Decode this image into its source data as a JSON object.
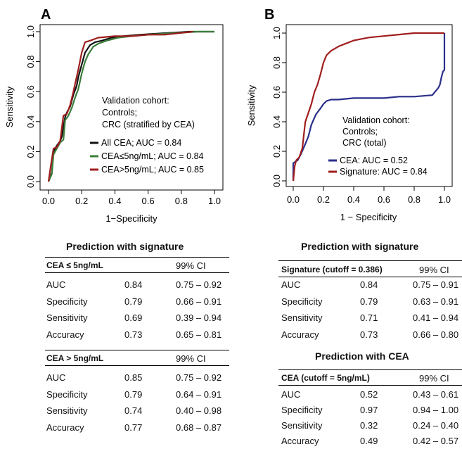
{
  "chart_data": [
    {
      "type": "line",
      "panel": "A",
      "xlabel": "1−Specificity",
      "ylabel": "Sensitivity",
      "xlim": [
        0,
        1
      ],
      "ylim": [
        0,
        1
      ],
      "x_ticks": [
        "0.0",
        "0.2",
        "0.4",
        "0.6",
        "0.8",
        "1.0"
      ],
      "y_ticks": [
        "0.0",
        "0.2",
        "0.4",
        "0.6",
        "0.8",
        "1.0"
      ],
      "annotation": [
        "Validation cohort:",
        "Controls;",
        "CRC (stratified by CEA)"
      ],
      "legend_position": "bottom-right",
      "series": [
        {
          "name": "All CEA; AUC = 0.84",
          "color": "#111111",
          "x": [
            0.0,
            0.02,
            0.03,
            0.05,
            0.07,
            0.08,
            0.1,
            0.11,
            0.13,
            0.15,
            0.17,
            0.18,
            0.2,
            0.22,
            0.25,
            0.28,
            0.32,
            0.38,
            0.45,
            0.55,
            0.7,
            0.85,
            1.0
          ],
          "y": [
            0.0,
            0.06,
            0.2,
            0.24,
            0.27,
            0.3,
            0.43,
            0.46,
            0.5,
            0.58,
            0.64,
            0.7,
            0.78,
            0.86,
            0.91,
            0.93,
            0.94,
            0.96,
            0.97,
            0.98,
            0.99,
            1.0,
            1.0
          ]
        },
        {
          "name": "CEA≤5ng/mL; AUC = 0.84",
          "color": "#3a7d3a",
          "x": [
            0.0,
            0.02,
            0.03,
            0.05,
            0.07,
            0.09,
            0.1,
            0.12,
            0.14,
            0.16,
            0.18,
            0.2,
            0.22,
            0.24,
            0.27,
            0.3,
            0.35,
            0.42,
            0.5,
            0.6,
            0.75,
            0.9,
            1.0
          ],
          "y": [
            0.0,
            0.05,
            0.18,
            0.22,
            0.26,
            0.28,
            0.41,
            0.44,
            0.49,
            0.56,
            0.62,
            0.72,
            0.8,
            0.85,
            0.9,
            0.92,
            0.94,
            0.96,
            0.97,
            0.98,
            0.99,
            1.0,
            1.0
          ]
        },
        {
          "name": "CEA>5ng/mL; AUC = 0.85",
          "color": "#a01e1e",
          "x": [
            0.0,
            0.01,
            0.03,
            0.05,
            0.07,
            0.09,
            0.11,
            0.13,
            0.15,
            0.17,
            0.18,
            0.2,
            0.22,
            0.25,
            0.3,
            0.4,
            0.5,
            0.6,
            0.7,
            0.87
          ],
          "y": [
            0.0,
            0.08,
            0.22,
            0.23,
            0.27,
            0.44,
            0.45,
            0.51,
            0.6,
            0.7,
            0.75,
            0.86,
            0.93,
            0.94,
            0.96,
            0.97,
            0.97,
            0.98,
            0.98,
            1.0
          ]
        }
      ]
    },
    {
      "type": "line",
      "panel": "B",
      "xlabel": "1 − Specificity",
      "ylabel": "Sensitivity",
      "xlim": [
        0,
        1
      ],
      "ylim": [
        0,
        1
      ],
      "x_ticks": [
        "0.0",
        "0.2",
        "0.4",
        "0.6",
        "0.8",
        "1.0"
      ],
      "y_ticks": [
        "0.0",
        "0.2",
        "0.4",
        "0.6",
        "0.8",
        "1.0"
      ],
      "annotation": [
        "Validation cohort:",
        "Controls;",
        "CRC (total)"
      ],
      "legend_position": "bottom-right",
      "series": [
        {
          "name": "CEA: AUC = 0.52",
          "color": "#2a2f8a",
          "x": [
            0.0,
            0.0,
            0.03,
            0.05,
            0.08,
            0.1,
            0.12,
            0.15,
            0.18,
            0.2,
            0.22,
            0.25,
            0.3,
            0.4,
            0.5,
            0.6,
            0.7,
            0.8,
            0.92,
            0.96,
            0.97,
            0.98,
            0.99,
            1.0,
            1.0
          ],
          "y": [
            0.0,
            0.12,
            0.14,
            0.18,
            0.25,
            0.3,
            0.38,
            0.45,
            0.49,
            0.52,
            0.54,
            0.55,
            0.55,
            0.56,
            0.56,
            0.56,
            0.57,
            0.57,
            0.58,
            0.63,
            0.65,
            0.7,
            0.74,
            0.75,
            1.0
          ]
        },
        {
          "name": "Signature: AUC = 0.84",
          "color": "#a01e1e",
          "x": [
            0.0,
            0.01,
            0.02,
            0.04,
            0.06,
            0.08,
            0.1,
            0.12,
            0.14,
            0.16,
            0.18,
            0.2,
            0.22,
            0.25,
            0.3,
            0.35,
            0.4,
            0.5,
            0.6,
            0.7,
            0.8,
            0.88,
            1.0
          ],
          "y": [
            0.0,
            0.1,
            0.14,
            0.16,
            0.22,
            0.4,
            0.46,
            0.52,
            0.6,
            0.65,
            0.72,
            0.8,
            0.85,
            0.88,
            0.91,
            0.93,
            0.95,
            0.97,
            0.98,
            0.99,
            1.0,
            1.0,
            1.0
          ]
        }
      ]
    }
  ],
  "tables": {
    "left": {
      "title": "Prediction with signature",
      "group1": {
        "header": "CEA ≤ 5ng/mL",
        "ci": "99% CI",
        "rows": [
          {
            "label": "AUC",
            "value": "0.84",
            "ci": "0.75 – 0.92"
          },
          {
            "label": "Specificity",
            "value": "0.79",
            "ci": "0.66 – 0.91"
          },
          {
            "label": "Sensitivity",
            "value": "0.69",
            "ci": "0.39 – 0.94"
          },
          {
            "label": "Accuracy",
            "value": "0.73",
            "ci": "0.65 – 0.81"
          }
        ]
      },
      "group2": {
        "header": "CEA > 5ng/mL",
        "ci": "99% CI",
        "rows": [
          {
            "label": "AUC",
            "value": "0.85",
            "ci": "0.75 – 0.92"
          },
          {
            "label": "Specificity",
            "value": "0.79",
            "ci": "0.64 – 0.91"
          },
          {
            "label": "Sensitivity",
            "value": "0.74",
            "ci": "0.40 – 0.98"
          },
          {
            "label": "Accuracy",
            "value": "0.77",
            "ci": "0.68 – 0.87"
          }
        ]
      }
    },
    "right": {
      "title1": "Prediction with signature",
      "group1": {
        "header": "Signature (cutoff = 0.386)",
        "ci": "99% CI",
        "rows": [
          {
            "label": "AUC",
            "value": "0.84",
            "ci": "0.75 – 0.91"
          },
          {
            "label": "Specificity",
            "value": "0.79",
            "ci": "0.63 – 0.91"
          },
          {
            "label": "Sensitivity",
            "value": "0.71",
            "ci": "0.41 – 0.94"
          },
          {
            "label": "Accuracy",
            "value": "0.73",
            "ci": "0.66 – 0.80"
          }
        ]
      },
      "title2": "Prediction with CEA",
      "group2": {
        "header": "CEA (cutoff = 5ng/mL)",
        "ci": "99% CI",
        "rows": [
          {
            "label": "AUC",
            "value": "0.52",
            "ci": "0.43 – 0.61"
          },
          {
            "label": "Specificity",
            "value": "0.97",
            "ci": "0.94 – 1.00"
          },
          {
            "label": "Sensitivity",
            "value": "0.32",
            "ci": "0.24 – 0.40"
          },
          {
            "label": "Accuracy",
            "value": "0.49",
            "ci": "0.42 – 0.57"
          }
        ]
      }
    }
  }
}
